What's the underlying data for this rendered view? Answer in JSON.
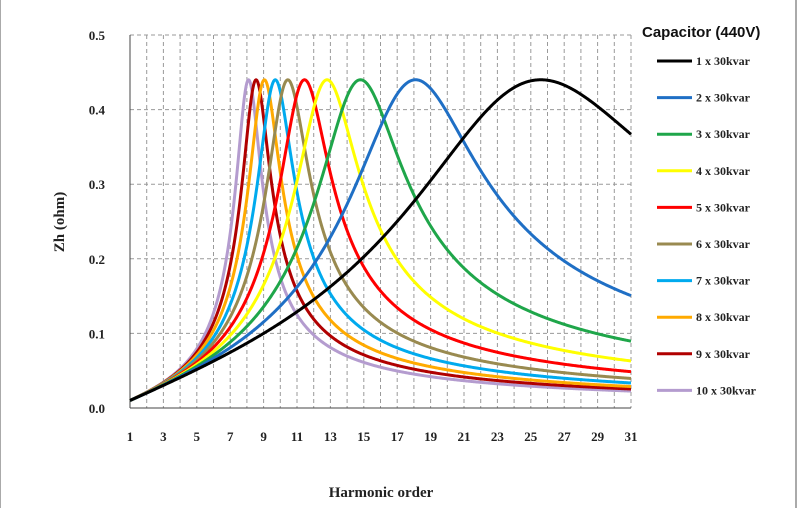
{
  "chart_data": {
    "type": "line",
    "title": "",
    "xlabel": "Harmonic order",
    "ylabel": "Zh (ohm)",
    "xlim": [
      1,
      31
    ],
    "ylim": [
      0.0,
      0.5
    ],
    "x_ticks": [
      "1",
      "3",
      "5",
      "7",
      "9",
      "11",
      "13",
      "15",
      "17",
      "19",
      "21",
      "23",
      "25",
      "27",
      "29",
      "31"
    ],
    "y_ticks": [
      "0.0",
      "0.1",
      "0.2",
      "0.3",
      "0.4",
      "0.5"
    ],
    "grid": "vertical dashed at every harmonic, horizontal dashed at y ticks",
    "legend_title": "Capacitor (440V)",
    "legend_position": "right",
    "series": [
      {
        "name": "1 x 30kvar",
        "color": "#000000",
        "peak_x": 25.6,
        "peak_y": 0.44
      },
      {
        "name": "2 x 30kvar",
        "color": "#1f6fc5",
        "peak_x": 18.1,
        "peak_y": 0.44
      },
      {
        "name": "3 x 30kvar",
        "color": "#1fa64a",
        "peak_x": 14.8,
        "peak_y": 0.44
      },
      {
        "name": "4 x 30kvar",
        "color": "#ffff00",
        "peak_x": 12.8,
        "peak_y": 0.44
      },
      {
        "name": "5 x 30kvar",
        "color": "#ff0000",
        "peak_x": 11.45,
        "peak_y": 0.44
      },
      {
        "name": "6 x 30kvar",
        "color": "#998a50",
        "peak_x": 10.45,
        "peak_y": 0.44
      },
      {
        "name": "7 x 30kvar",
        "color": "#00aaee",
        "peak_x": 9.7,
        "peak_y": 0.44
      },
      {
        "name": "8 x 30kvar",
        "color": "#ffaa00",
        "peak_x": 9.05,
        "peak_y": 0.44
      },
      {
        "name": "9 x 30kvar",
        "color": "#b00000",
        "peak_x": 8.55,
        "peak_y": 0.44
      },
      {
        "name": "10 x 30kvar",
        "color": "#b49ccf",
        "peak_x": 8.1,
        "peak_y": 0.44
      }
    ]
  }
}
